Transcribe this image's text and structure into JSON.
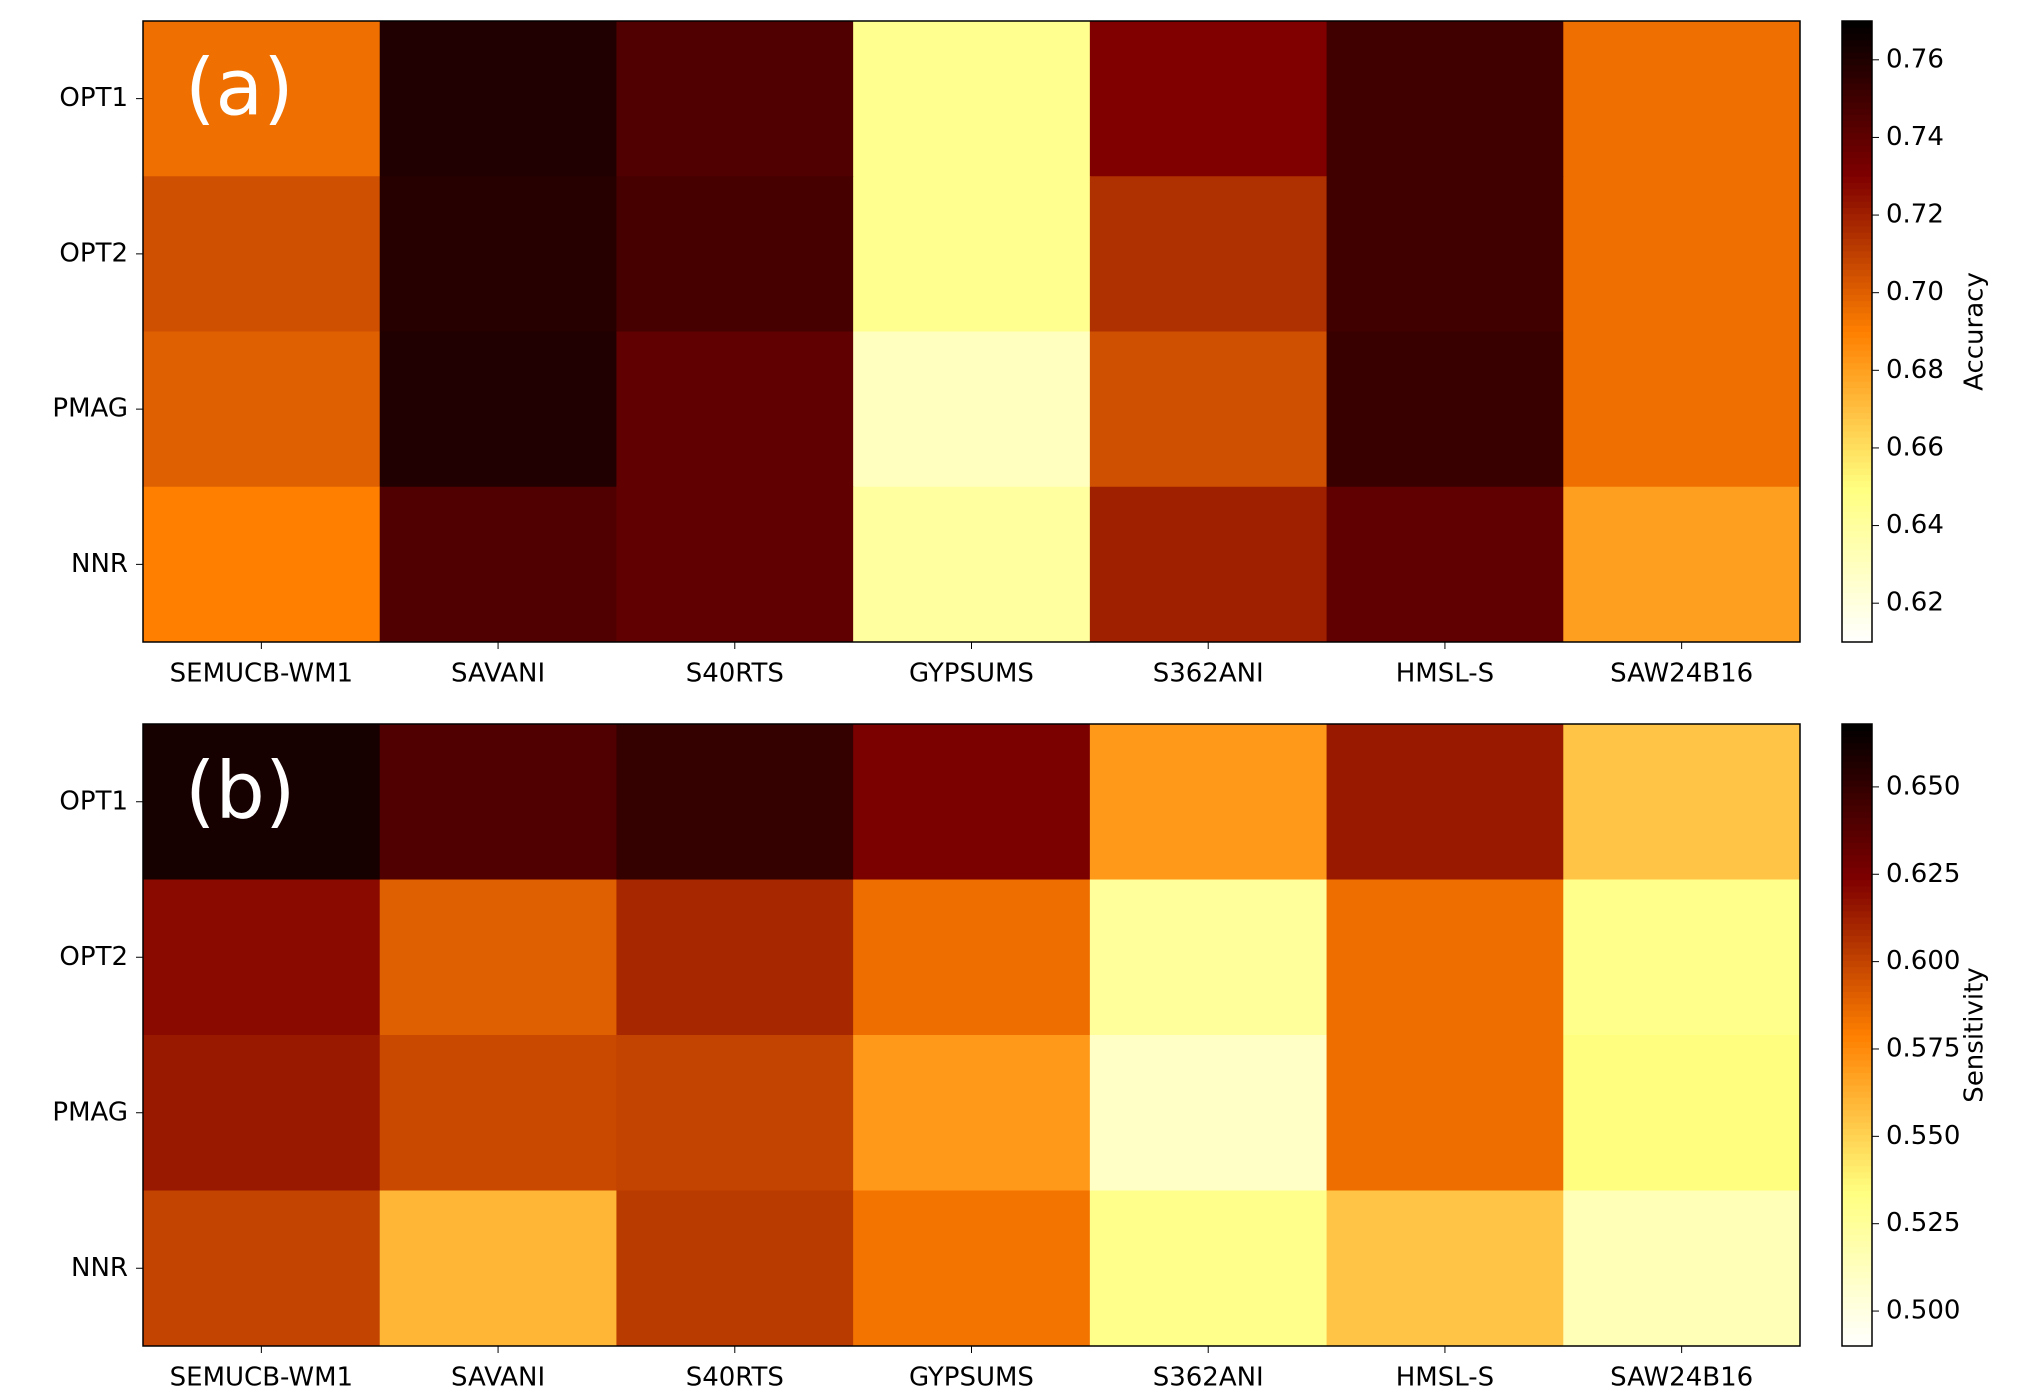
{
  "chart_data": [
    {
      "type": "heatmap",
      "annotation": "(a)",
      "colormap": "afmhot_r",
      "categories": [
        "SEMUCB-WM1",
        "SAVANI",
        "S40RTS",
        "GYPSUMS",
        "S362ANI",
        "HMSL-S",
        "SAW24B16"
      ],
      "rows": [
        "OPT1",
        "OPT2",
        "PMAG",
        "NNR"
      ],
      "values": [
        [
          0.695,
          0.76,
          0.745,
          0.645,
          0.73,
          0.75,
          0.695
        ],
        [
          0.705,
          0.758,
          0.748,
          0.645,
          0.715,
          0.75,
          0.695
        ],
        [
          0.7,
          0.76,
          0.74,
          0.63,
          0.705,
          0.752,
          0.695
        ],
        [
          0.69,
          0.745,
          0.74,
          0.64,
          0.72,
          0.74,
          0.68
        ]
      ],
      "colorbar_label": "Accuracy",
      "clim": [
        0.61,
        0.77
      ],
      "cticks": [
        0.62,
        0.64,
        0.66,
        0.68,
        {
          "value": 0.7,
          "label": "0.70"
        },
        0.72,
        0.74,
        0.76
      ]
    },
    {
      "type": "heatmap",
      "annotation": "(b)",
      "colormap": "afmhot_r",
      "categories": [
        "SEMUCB-WM1",
        "SAVANI",
        "S40RTS",
        "GYPSUMS",
        "S362ANI",
        "HMSL-S",
        "SAW24B16"
      ],
      "rows": [
        "OPT1",
        "OPT2",
        "PMAG",
        "NNR"
      ],
      "values": [
        [
          0.66,
          0.64,
          0.65,
          0.625,
          0.57,
          0.615,
          0.555
        ],
        [
          0.62,
          0.59,
          0.61,
          0.585,
          0.525,
          0.585,
          0.53
        ],
        [
          0.615,
          0.598,
          0.6,
          0.57,
          0.51,
          0.585,
          0.535
        ],
        [
          0.6,
          0.56,
          0.603,
          0.583,
          0.53,
          0.555,
          0.515
        ]
      ],
      "colorbar_label": "Sensitivity",
      "clim": [
        0.49,
        0.668
      ],
      "cticks": [
        {
          "value": 0.5,
          "label": "0.500"
        },
        0.525,
        {
          "value": 0.55,
          "label": "0.550"
        },
        0.575,
        {
          "value": 0.6,
          "label": "0.600"
        },
        0.625,
        {
          "value": 0.65,
          "label": "0.650"
        }
      ]
    }
  ]
}
